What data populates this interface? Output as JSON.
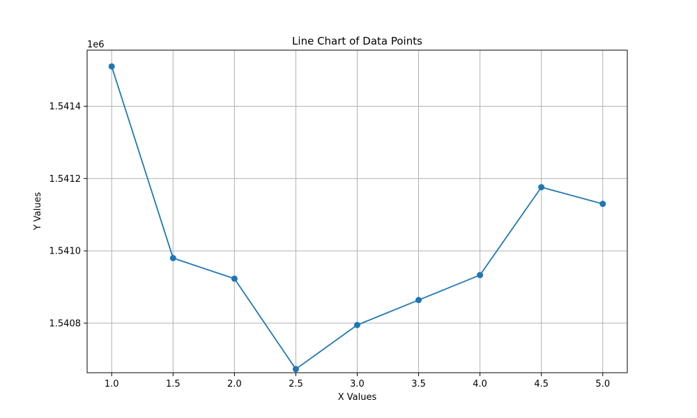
{
  "chart_data": {
    "type": "line",
    "title": "Line Chart of Data Points",
    "xlabel": "X Values",
    "ylabel": "Y Values",
    "y_offset_label": "1e6",
    "x": [
      1.0,
      1.5,
      2.0,
      2.5,
      3.0,
      3.5,
      4.0,
      4.5,
      5.0
    ],
    "y": [
      1541510,
      1540980,
      1540923,
      1540673,
      1540795,
      1540864,
      1540933,
      1541176,
      1541130
    ],
    "xlim": [
      0.8,
      5.2
    ],
    "ylim": [
      1540663,
      1541555
    ],
    "x_ticks": [
      1.0,
      1.5,
      2.0,
      2.5,
      3.0,
      3.5,
      4.0,
      4.5,
      5.0
    ],
    "x_tick_labels": [
      "1.0",
      "1.5",
      "2.0",
      "2.5",
      "3.0",
      "3.5",
      "4.0",
      "4.5",
      "5.0"
    ],
    "y_ticks": [
      1540800,
      1541000,
      1541200,
      1541400
    ],
    "y_tick_labels": [
      "1.5408",
      "1.5410",
      "1.5412",
      "1.5414"
    ],
    "grid": true,
    "marker": "circle",
    "color": "#1f77b4"
  }
}
